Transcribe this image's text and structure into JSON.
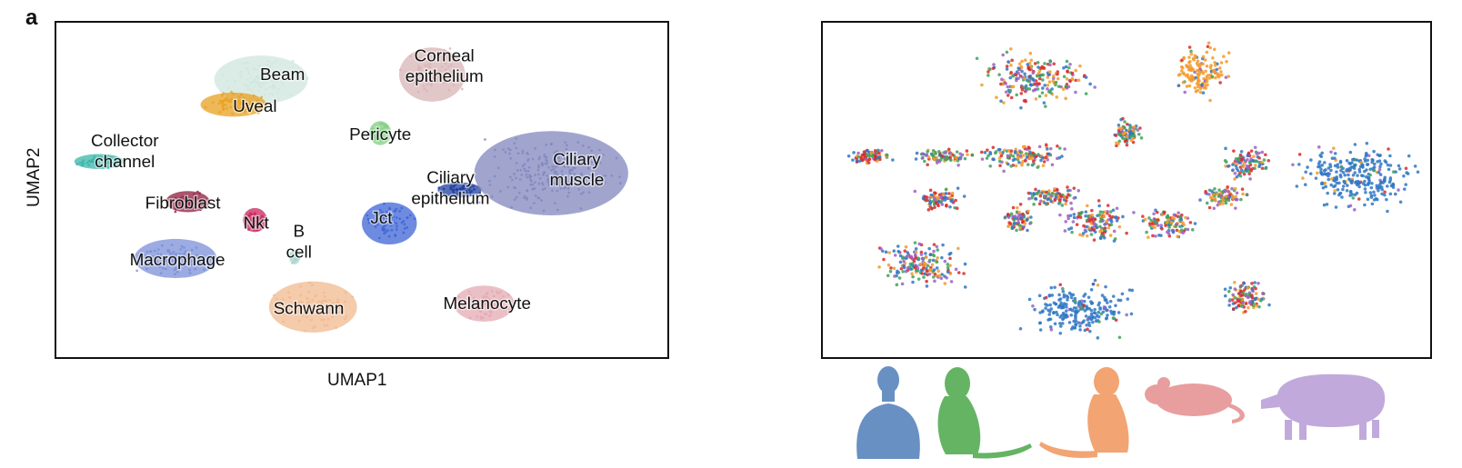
{
  "panel_letter": "a",
  "chart_data": [
    {
      "type": "scatter",
      "xlabel": "UMAP1",
      "ylabel": "UMAP2",
      "clusters": [
        {
          "name": "Beam",
          "label_lines": [
            "Beam"
          ],
          "color": "#cfe6df",
          "cx": 0.335,
          "cy": 0.17,
          "rx": 0.085,
          "ry": 0.08,
          "label_x": 0.37,
          "label_y": 0.155
        },
        {
          "name": "Uveal",
          "label_lines": [
            "Uveal"
          ],
          "color": "#e8a020",
          "cx": 0.29,
          "cy": 0.245,
          "rx": 0.06,
          "ry": 0.04,
          "label_x": 0.325,
          "label_y": 0.25
        },
        {
          "name": "Corneal epithelium",
          "label_lines": [
            "Corneal",
            "epithelium"
          ],
          "color": "#d8b4b6",
          "cx": 0.615,
          "cy": 0.155,
          "rx": 0.06,
          "ry": 0.09,
          "label_x": 0.635,
          "label_y": 0.13
        },
        {
          "name": "Pericyte",
          "label_lines": [
            "Pericyte"
          ],
          "color": "#7fcf7f",
          "cx": 0.53,
          "cy": 0.33,
          "rx": 0.02,
          "ry": 0.04,
          "label_x": 0.53,
          "label_y": 0.335
        },
        {
          "name": "Collector channel",
          "label_lines": [
            "Collector",
            "channel"
          ],
          "color": "#3ab5a9",
          "cx": 0.07,
          "cy": 0.415,
          "rx": 0.045,
          "ry": 0.025,
          "label_x": 0.112,
          "label_y": 0.385
        },
        {
          "name": "Fibroblast",
          "label_lines": [
            "Fibroblast"
          ],
          "color": "#8e1b3e",
          "cx": 0.215,
          "cy": 0.535,
          "rx": 0.04,
          "ry": 0.035,
          "label_x": 0.207,
          "label_y": 0.54
        },
        {
          "name": "Nkt",
          "label_lines": [
            "Nkt"
          ],
          "color": "#c8245c",
          "cx": 0.325,
          "cy": 0.59,
          "rx": 0.022,
          "ry": 0.04,
          "label_x": 0.327,
          "label_y": 0.6
        },
        {
          "name": "B cell",
          "label_lines": [
            "B",
            "cell"
          ],
          "color": "#a8d8d0",
          "cx": 0.39,
          "cy": 0.7,
          "rx": 0.01,
          "ry": 0.025,
          "label_x": 0.397,
          "label_y": 0.655
        },
        {
          "name": "Macrophage",
          "label_lines": [
            "Macrophage"
          ],
          "color": "#7b8fd8",
          "cx": 0.195,
          "cy": 0.705,
          "rx": 0.075,
          "ry": 0.065,
          "label_x": 0.198,
          "label_y": 0.71
        },
        {
          "name": "Schwann",
          "label_lines": [
            "Schwann"
          ],
          "color": "#f0b98f",
          "cx": 0.42,
          "cy": 0.85,
          "rx": 0.08,
          "ry": 0.085,
          "label_x": 0.413,
          "label_y": 0.855
        },
        {
          "name": "Jct",
          "label_lines": [
            "Jct"
          ],
          "color": "#3d64d6",
          "cx": 0.545,
          "cy": 0.6,
          "rx": 0.05,
          "ry": 0.07,
          "label_x": 0.532,
          "label_y": 0.585
        },
        {
          "name": "Ciliary epithelium",
          "label_lines": [
            "Ciliary",
            "epithelium"
          ],
          "color": "#1f3f9e",
          "cx": 0.66,
          "cy": 0.5,
          "rx": 0.04,
          "ry": 0.025,
          "label_x": 0.645,
          "label_y": 0.495
        },
        {
          "name": "Ciliary muscle",
          "label_lines": [
            "Ciliary",
            "muscle"
          ],
          "color": "#8287bd",
          "cx": 0.81,
          "cy": 0.45,
          "rx": 0.14,
          "ry": 0.14,
          "label_x": 0.852,
          "label_y": 0.44
        },
        {
          "name": "Melanocyte",
          "label_lines": [
            "Melanocyte"
          ],
          "color": "#e3a9b2",
          "cx": 0.7,
          "cy": 0.84,
          "rx": 0.055,
          "ry": 0.06,
          "label_x": 0.705,
          "label_y": 0.84
        }
      ]
    },
    {
      "type": "scatter",
      "species_colors": [
        "#2f77c3",
        "#3ea35a",
        "#f39a2d",
        "#d92a2a",
        "#9b62c6"
      ]
    }
  ],
  "species": [
    {
      "icon": "human-icon",
      "color": "#4f7db8"
    },
    {
      "icon": "green-monkey-icon",
      "color": "#4aa84a"
    },
    {
      "icon": "macaque-icon",
      "color": "#f0955a"
    },
    {
      "icon": "mouse-icon",
      "color": "#e48e8e"
    },
    {
      "icon": "pig-icon",
      "color": "#b79bd6"
    }
  ]
}
